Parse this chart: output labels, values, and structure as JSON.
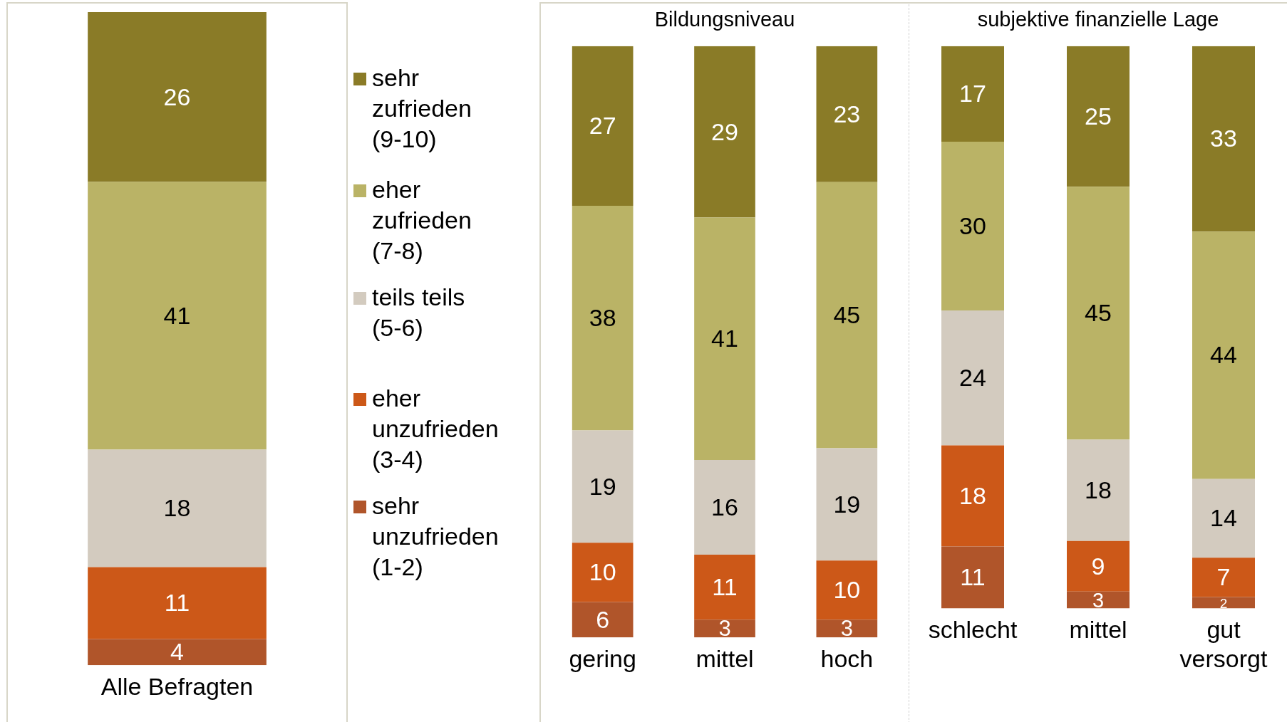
{
  "chart_data": [
    {
      "type": "bar",
      "stacked": true,
      "categories": [
        "Alle Befragten"
      ],
      "ylim": [
        0,
        100
      ],
      "tick_labels": "x",
      "data_labels": true,
      "legend": "right",
      "series": [
        {
          "name": "sehr unzufrieden (1-2)",
          "color": "#b0552a",
          "values": [
            4
          ]
        },
        {
          "name": "eher unzufrieden (3-4)",
          "color": "#cc5818",
          "values": [
            11
          ]
        },
        {
          "name": "teils teils (5-6)",
          "color": "#d3cbbf",
          "values": [
            18
          ]
        },
        {
          "name": "eher zufrieden (7-8)",
          "color": "#bab366",
          "values": [
            41
          ]
        },
        {
          "name": "sehr zufrieden (9-10)",
          "color": "#8a7b27",
          "values": [
            26
          ]
        }
      ]
    },
    {
      "type": "bar",
      "stacked": true,
      "title": "Bildungsniveau",
      "categories": [
        "gering",
        "mittel",
        "hoch"
      ],
      "ylim": [
        0,
        100
      ],
      "tick_labels": "x",
      "data_labels": true,
      "series": [
        {
          "color": "#b0552a",
          "values": [
            6,
            3,
            3
          ]
        },
        {
          "color": "#cc5818",
          "values": [
            10,
            11,
            10
          ]
        },
        {
          "color": "#d3cbbf",
          "values": [
            19,
            16,
            19
          ]
        },
        {
          "color": "#bab366",
          "values": [
            38,
            41,
            45
          ]
        },
        {
          "color": "#8a7b27",
          "values": [
            27,
            29,
            23
          ]
        }
      ]
    },
    {
      "type": "bar",
      "stacked": true,
      "title": "subjektive finanzielle Lage",
      "categories": [
        "schlecht",
        "mittel",
        "gut versorgt"
      ],
      "ylim": [
        0,
        100
      ],
      "tick_labels": "x",
      "data_labels": true,
      "series": [
        {
          "color": "#b0552a",
          "values": [
            11,
            3,
            2
          ]
        },
        {
          "color": "#cc5818",
          "values": [
            18,
            9,
            7
          ]
        },
        {
          "color": "#d3cbbf",
          "values": [
            24,
            18,
            14
          ]
        },
        {
          "color": "#bab366",
          "values": [
            30,
            45,
            44
          ]
        },
        {
          "color": "#8a7b27",
          "values": [
            17,
            25,
            33
          ]
        }
      ]
    }
  ]
}
